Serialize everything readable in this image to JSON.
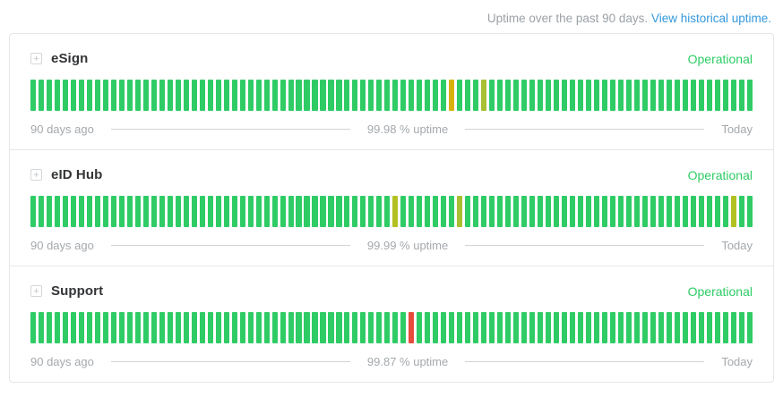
{
  "header": {
    "caption": "Uptime over the past 90 days.",
    "link_label": "View historical uptime."
  },
  "legend": {
    "left_label": "90 days ago",
    "right_label": "Today"
  },
  "bar_colors": {
    "g": "#2fcc66",
    "y": "#d9b10d",
    "yg": "#a8c033",
    "ol": "#b2c121",
    "r": "#e74c3c"
  },
  "chart_data": [
    {
      "type": "bar",
      "title": "eSign uptime over the past 90 days",
      "days": 90,
      "default_status": "g",
      "overrides": {
        "52": "y",
        "56": "yg"
      },
      "uptime_label": "99.98 % uptime"
    },
    {
      "type": "bar",
      "title": "eID Hub uptime over the past 90 days",
      "days": 90,
      "default_status": "g",
      "overrides": {
        "45": "ol",
        "53": "yg",
        "87": "ol"
      },
      "uptime_label": "99.99 % uptime"
    },
    {
      "type": "bar",
      "title": "Support uptime over the past 90 days",
      "days": 90,
      "default_status": "g",
      "overrides": {
        "47": "r"
      },
      "uptime_label": "99.87 % uptime"
    }
  ],
  "services": [
    {
      "name": "eSign",
      "status": "Operational",
      "uptime": "99.98 % uptime"
    },
    {
      "name": "eID Hub",
      "status": "Operational",
      "uptime": "99.99 % uptime"
    },
    {
      "name": "Support",
      "status": "Operational",
      "uptime": "99.87 % uptime"
    }
  ]
}
